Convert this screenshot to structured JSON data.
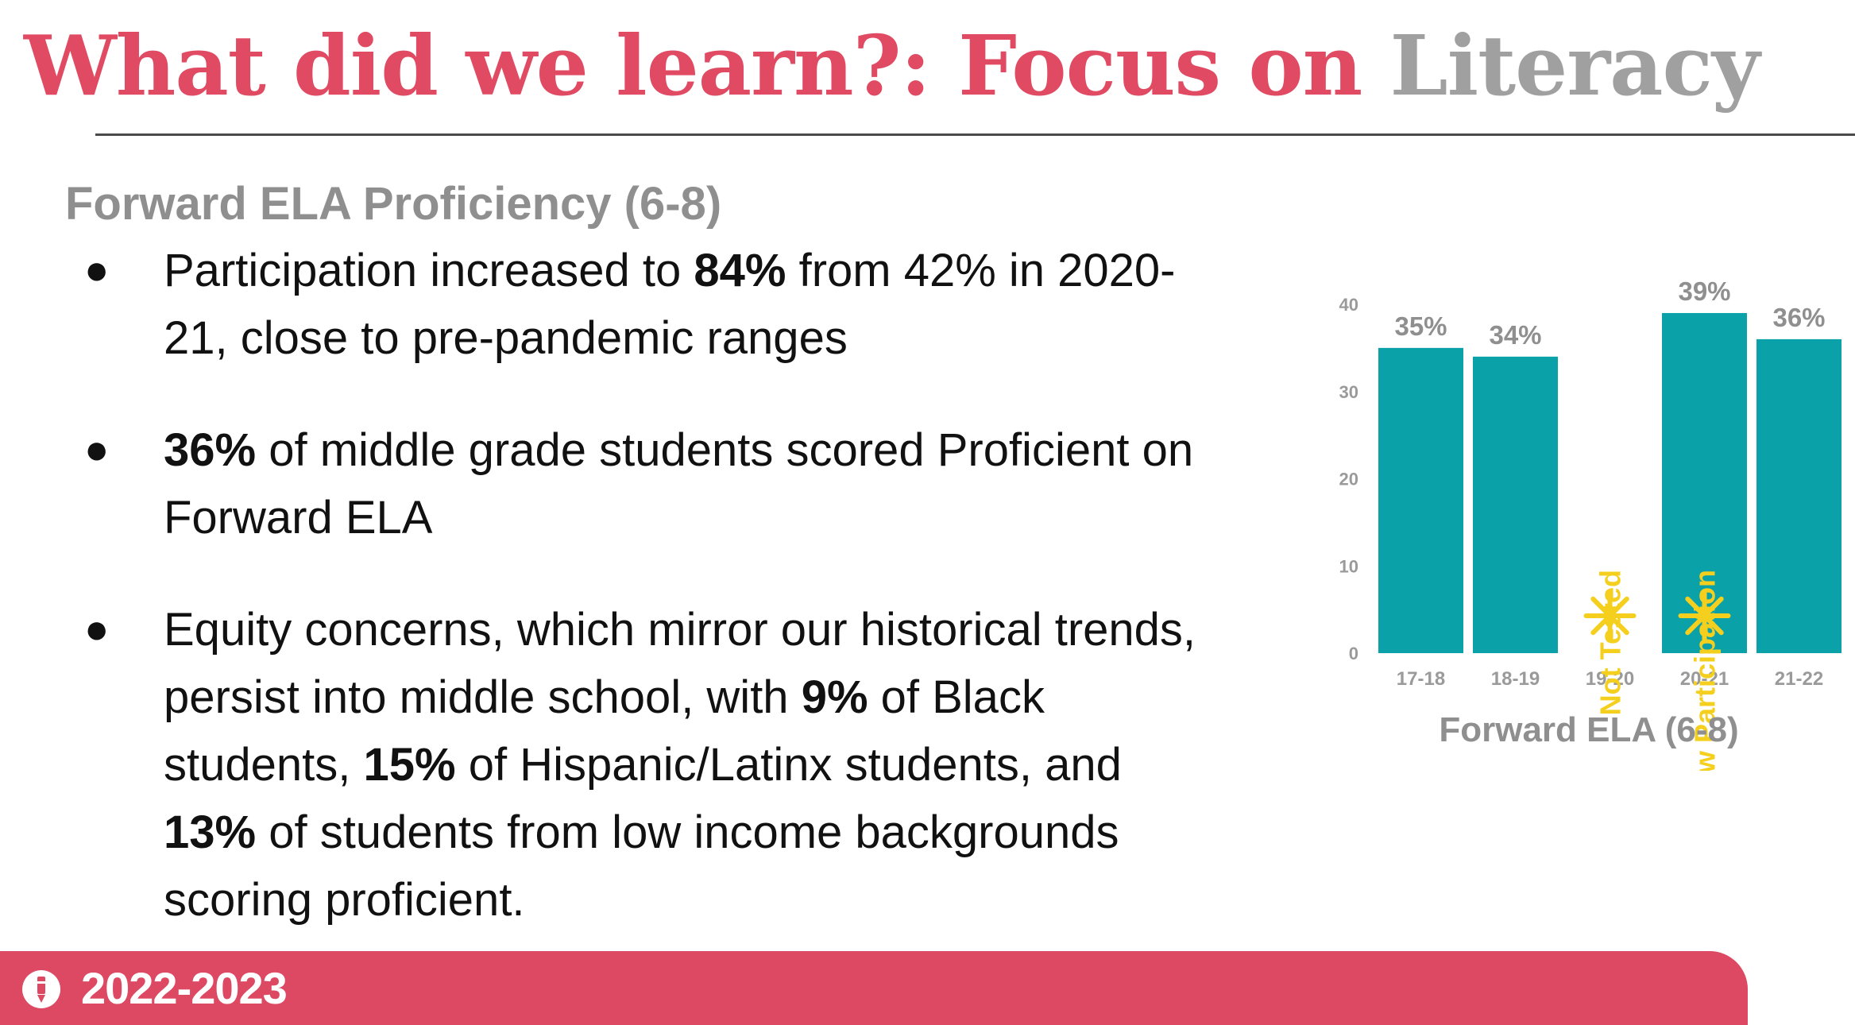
{
  "slide": {
    "title_part1": "What did we learn?: Focus on ",
    "title_part2": "Literacy",
    "subtitle": "Forward ELA Proficiency (6-8)",
    "bullet_glyph": "●",
    "bullets": [
      [
        {
          "text": "Participation increased to ",
          "bold": false
        },
        {
          "text": "84%",
          "bold": true
        },
        {
          "text": " from 42% in 2020-21, close to pre-pandemic ranges",
          "bold": false
        }
      ],
      [
        {
          "text": "36%",
          "bold": true
        },
        {
          "text": " of middle grade students scored Proficient on Forward ELA",
          "bold": false
        }
      ],
      [
        {
          "text": "Equity concerns, which mirror our historical trends, persist into middle school, with ",
          "bold": false
        },
        {
          "text": "9%",
          "bold": true
        },
        {
          "text": " of Black students, ",
          "bold": false
        },
        {
          "text": "15%",
          "bold": true
        },
        {
          "text": " of Hispanic/Latinx students, and ",
          "bold": false
        },
        {
          "text": "13%",
          "bold": true
        },
        {
          "text": " of students from low income backgrounds scoring proficient.",
          "bold": false
        }
      ]
    ],
    "footer": {
      "label": "2022-2023",
      "icon": "pencil-icon"
    }
  },
  "chart_data": {
    "type": "bar",
    "title": "Forward ELA (6-8)",
    "xlabel": "Forward ELA (6-8)",
    "ylabel": "",
    "categories": [
      "17-18",
      "18-19",
      "19-20",
      "20-21",
      "21-22"
    ],
    "values": [
      35,
      34,
      null,
      39,
      36
    ],
    "data_labels": [
      "35%",
      "34%",
      "",
      "39%",
      "36%"
    ],
    "annotations": [
      {
        "category": "19-20",
        "text": "Not Tested",
        "icon": "asterisk-icon"
      },
      {
        "category": "20-21",
        "text": "Low Participation",
        "icon": "asterisk-icon"
      }
    ],
    "ylim": [
      0,
      40
    ],
    "yticks": [
      0,
      10,
      20,
      30,
      40
    ],
    "grid": false,
    "legend": "none",
    "colors": {
      "bar": "#0aa1a8",
      "annotation": "#f5cf1e",
      "label": "#8f8f8f",
      "tick": "#9a9a9a"
    }
  }
}
